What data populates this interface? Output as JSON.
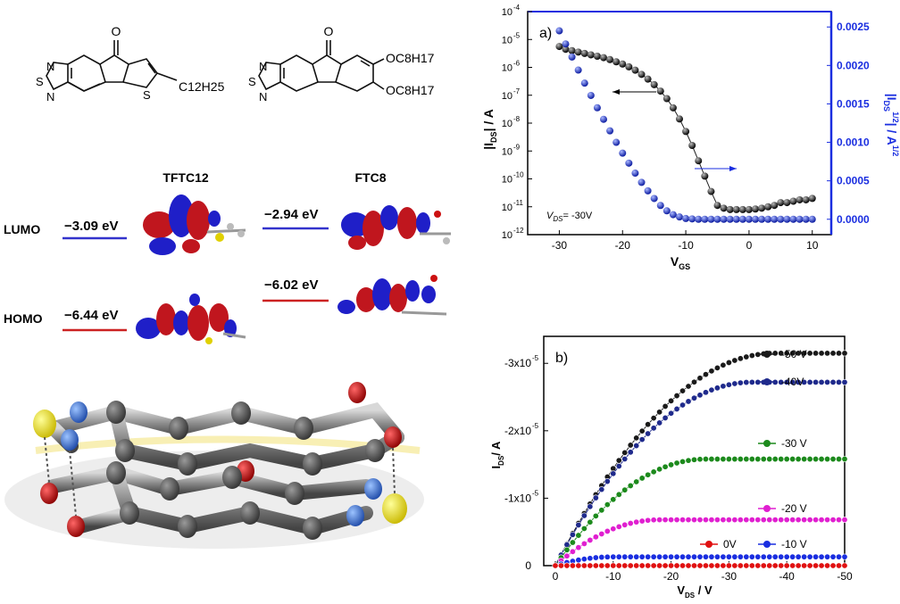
{
  "molecules": {
    "tftc12": {
      "name": "TFTC12",
      "atoms": {
        "carbonyl_o": "O",
        "n_top": "N",
        "s_ring": "S",
        "n_bottom": "N",
        "s_thiophene": "S",
        "side_chain": "C12H25"
      }
    },
    "ftc8": {
      "name": "FTC8",
      "atoms": {
        "carbonyl_o": "O",
        "n_top": "N",
        "s_ring": "S",
        "n_bottom": "N",
        "sub_top": "OC8H17",
        "sub_bottom": "OC8H17"
      }
    }
  },
  "energy_levels": {
    "lumo_label": "LUMO",
    "homo_label": "HOMO",
    "tftc12_lumo": "−3.09 eV",
    "tftc12_homo": "−6.44 eV",
    "ftc8_lumo": "−2.94 eV",
    "ftc8_homo": "−6.02 eV",
    "lumo_color": "#3333cc",
    "homo_color": "#cc2222"
  },
  "colors": {
    "carbon": "#555555",
    "oxygen": "#cc1111",
    "nitrogen": "#3b6fd6",
    "sulfur": "#e8e000",
    "orbital_pos": "#c0161e",
    "orbital_neg": "#1f1fc8",
    "transfer_curve": "#111111",
    "sqrt_curve": "#1a2ee0",
    "axis_blue": "#1a2ee0"
  },
  "chart_data": [
    {
      "panel": "a)",
      "type": "scatter",
      "xlabel_main": "V",
      "xlabel_sub": "GS",
      "ylabel_left": "|I",
      "ylabel_left_sub": "DS",
      "ylabel_left_tail": "| / A",
      "ylabel_right": "|I",
      "ylabel_right_sub": "DS",
      "ylabel_right_sup": "1/2",
      "ylabel_right_tail": "| / A",
      "ylabel_right_tail_sup": "1/2",
      "annotation_main": "V",
      "annotation_sub": "DS",
      "annotation_tail": "= -30V",
      "xlim": [
        -35,
        13
      ],
      "x_ticks": [
        -30,
        -20,
        -10,
        0,
        10
      ],
      "x_tick_labels": [
        "-30",
        "-20",
        "-10",
        "0",
        "10"
      ],
      "ylim_left_log10": [
        -12,
        -4
      ],
      "y_left_tick_exponents": [
        -12,
        -11,
        -10,
        -9,
        -8,
        -7,
        -6,
        -5,
        -4
      ],
      "y_left_tick_base": "10",
      "ylim_right": [
        -0.0002,
        0.0027
      ],
      "y_right_ticks": [
        "0.0000",
        "0.0005",
        "0.0010",
        "0.0015",
        "0.0020",
        "0.0025"
      ],
      "y_right_tick_values": [
        0,
        0.0005,
        0.001,
        0.0015,
        0.002,
        0.0025
      ],
      "series": [
        {
          "axis": "left-log",
          "x": [
            -30,
            -29,
            -28,
            -27,
            -26,
            -25,
            -24,
            -23,
            -22,
            -21,
            -20,
            -19,
            -18,
            -17,
            -16,
            -15,
            -14,
            -13,
            -12,
            -11,
            -10,
            -9,
            -8,
            -7,
            -6,
            -5,
            -4,
            -3,
            -2,
            -1,
            0,
            1,
            2,
            3,
            4,
            5,
            6,
            7,
            8,
            9,
            10
          ],
          "y_log10": [
            -5.25,
            -5.35,
            -5.4,
            -5.45,
            -5.5,
            -5.55,
            -5.6,
            -5.65,
            -5.72,
            -5.8,
            -5.88,
            -5.98,
            -6.1,
            -6.25,
            -6.42,
            -6.62,
            -6.85,
            -7.12,
            -7.45,
            -7.85,
            -8.3,
            -8.8,
            -9.35,
            -9.9,
            -10.45,
            -10.95,
            -11.05,
            -11.1,
            -11.1,
            -11.1,
            -11.1,
            -11.08,
            -11.05,
            -11.0,
            -10.95,
            -10.85,
            -10.85,
            -10.8,
            -10.75,
            -10.75,
            -10.7
          ]
        },
        {
          "axis": "right-linear",
          "x": [
            -30,
            -29,
            -28,
            -27,
            -26,
            -25,
            -24,
            -23,
            -22,
            -21,
            -20,
            -19,
            -18,
            -17,
            -16,
            -15,
            -14,
            -13,
            -12,
            -11,
            -10,
            -9,
            -8,
            -7,
            -6,
            -5,
            -4,
            -3,
            -2,
            -1,
            0,
            1,
            2,
            3,
            4,
            5,
            6,
            7,
            8,
            9,
            10
          ],
          "y": [
            0.00245,
            0.00228,
            0.00211,
            0.00194,
            0.00177,
            0.00161,
            0.00145,
            0.0013,
            0.00115,
            0.001,
            0.00086,
            0.00073,
            0.0006,
            0.00048,
            0.00037,
            0.00027,
            0.00018,
            0.00011,
            6e-05,
            3e-05,
            1e-05,
            5e-06,
            0.0,
            0.0,
            0.0,
            0.0,
            0.0,
            0.0,
            0.0,
            0.0,
            0.0,
            0.0,
            0.0,
            0.0,
            0.0,
            0.0,
            0.0,
            0.0,
            0.0,
            0.0,
            0.0
          ]
        }
      ]
    },
    {
      "panel": "b)",
      "type": "scatter",
      "xlabel_main": "V",
      "xlabel_sub": "DS",
      "xlabel_tail": " / V",
      "ylabel_main": "I",
      "ylabel_sub": "DS",
      "ylabel_tail": "/ A",
      "xlim": [
        2,
        -50
      ],
      "x_ticks": [
        0,
        -10,
        -20,
        -30,
        -40,
        -50
      ],
      "x_tick_labels": [
        "0",
        "-10",
        "-20",
        "-30",
        "-40",
        "-50"
      ],
      "ylim": [
        0,
        -3.4e-05
      ],
      "y_ticks": [
        0,
        -1e-05,
        -2e-05,
        -3e-05
      ],
      "y_tick_labels": [
        {
          "mant": "0",
          "exp": ""
        },
        {
          "mant": "-1x10",
          "exp": "-5"
        },
        {
          "mant": "-2x10",
          "exp": "-5"
        },
        {
          "mant": "-3x10",
          "exp": "-5"
        }
      ],
      "series": [
        {
          "name": "-50 V",
          "color": "#1a1a1a",
          "isat": -3.15e-05,
          "vsat": -38
        },
        {
          "name": "-40V",
          "color": "#1f2a8c",
          "isat": -2.72e-05,
          "vsat": -34
        },
        {
          "name": "-30 V",
          "color": "#1c8a1c",
          "isat": -1.58e-05,
          "vsat": -26
        },
        {
          "name": "-20 V",
          "color": "#e01fd0",
          "isat": -6.8e-06,
          "vsat": -18
        },
        {
          "name": "-10 V",
          "color": "#1a2ee0",
          "isat": -1.3e-06,
          "vsat": -10
        },
        {
          "name": "0V",
          "color": "#e01010",
          "isat": 0.0,
          "vsat": -1
        }
      ]
    }
  ]
}
